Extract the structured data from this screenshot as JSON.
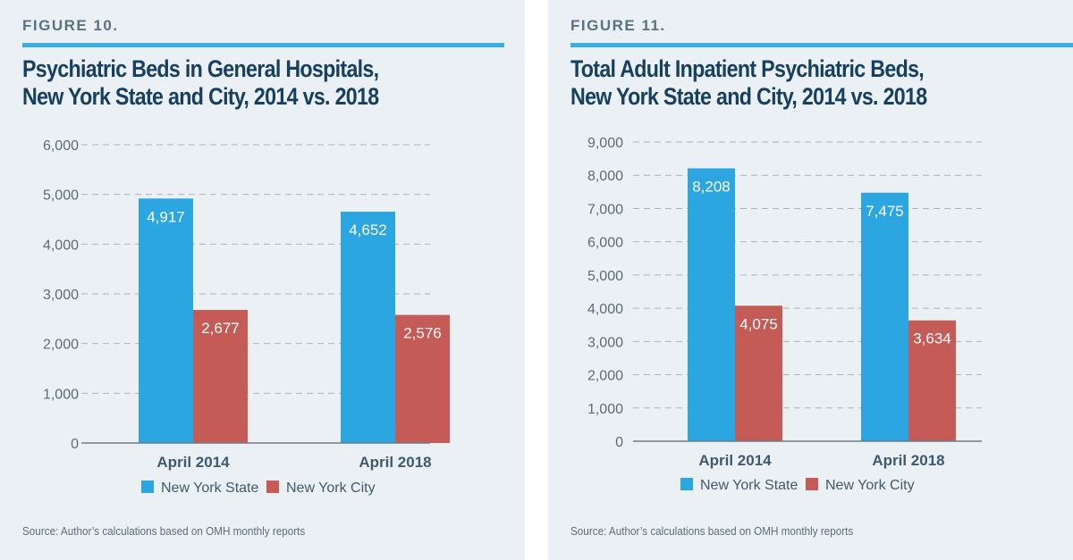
{
  "colors": {
    "state": "#2ba6e0",
    "city": "#c45b56",
    "accent": "#3aaee3"
  },
  "chart_data": [
    {
      "type": "bar",
      "figure_label": "FIGURE 10.",
      "title_line1": "Psychiatric Beds in General Hospitals,",
      "title_line2": "New York State and City, 2014 vs. 2018",
      "categories": [
        "April 2014",
        "April 2018"
      ],
      "series": [
        {
          "name": "New York State",
          "values": [
            4917,
            4652
          ],
          "labels": [
            "4,917",
            "4,652"
          ]
        },
        {
          "name": "New York City",
          "values": [
            2677,
            2576
          ],
          "labels": [
            "2,677",
            "2,576"
          ]
        }
      ],
      "ylim": [
        0,
        6000
      ],
      "yticks": [
        0,
        1000,
        2000,
        3000,
        4000,
        5000,
        6000
      ],
      "ytick_labels": [
        "0",
        "1,000",
        "2,000",
        "3,000",
        "4,000",
        "5,000",
        "6,000"
      ],
      "grid": "dashed",
      "legend": "bottom-center",
      "xlabel": "",
      "ylabel": "",
      "source": "Source: Author’s calculations based on OMH monthly reports"
    },
    {
      "type": "bar",
      "figure_label": "FIGURE 11.",
      "title_line1": "Total Adult Inpatient Psychiatric Beds,",
      "title_line2": "New York State and City, 2014 vs. 2018",
      "categories": [
        "April 2014",
        "April 2018"
      ],
      "series": [
        {
          "name": "New York State",
          "values": [
            8208,
            7475
          ],
          "labels": [
            "8,208",
            "7,475"
          ]
        },
        {
          "name": "New York City",
          "values": [
            4075,
            3634
          ],
          "labels": [
            "4,075",
            "3,634"
          ]
        }
      ],
      "ylim": [
        0,
        9000
      ],
      "yticks": [
        0,
        1000,
        2000,
        3000,
        4000,
        5000,
        6000,
        7000,
        8000,
        9000
      ],
      "ytick_labels": [
        "0",
        "1,000",
        "2,000",
        "3,000",
        "4,000",
        "5,000",
        "6,000",
        "7,000",
        "8,000",
        "9,000"
      ],
      "grid": "dashed",
      "legend": "bottom-center",
      "xlabel": "",
      "ylabel": "",
      "source": "Source: Author’s calculations based on OMH monthly reports"
    }
  ]
}
